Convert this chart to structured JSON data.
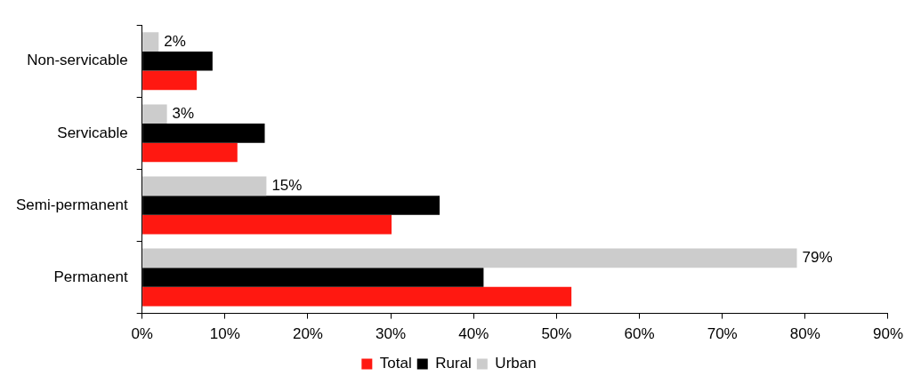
{
  "chart_data": {
    "type": "bar",
    "orientation": "horizontal",
    "categories": [
      "Non-servicable",
      "Servicable",
      "Semi-permanent",
      "Permanent"
    ],
    "series": [
      {
        "name": "Total",
        "color": "#ff1811",
        "values": [
          6.6,
          11.5,
          30.1,
          51.8
        ]
      },
      {
        "name": "Rural",
        "color": "#000000",
        "values": [
          8.5,
          14.8,
          35.9,
          41.2
        ]
      },
      {
        "name": "Urban",
        "color": "#cccccc",
        "values": [
          2,
          3,
          15,
          79
        ],
        "value_labels": [
          "2%",
          "3%",
          "15%",
          "79%"
        ]
      }
    ],
    "xlim": [
      0,
      90
    ],
    "xticks": [
      {
        "value": 0,
        "label": "0%"
      },
      {
        "value": 10,
        "label": "10%"
      },
      {
        "value": 20,
        "label": "20%"
      },
      {
        "value": 30,
        "label": "30%"
      },
      {
        "value": 40,
        "label": "40%"
      },
      {
        "value": 50,
        "label": "50%"
      },
      {
        "value": 60,
        "label": "60%"
      },
      {
        "value": 70,
        "label": "70%"
      },
      {
        "value": 80,
        "label": "80%"
      },
      {
        "value": 90,
        "label": "90%"
      }
    ],
    "grid": false,
    "legend": "bottom"
  }
}
